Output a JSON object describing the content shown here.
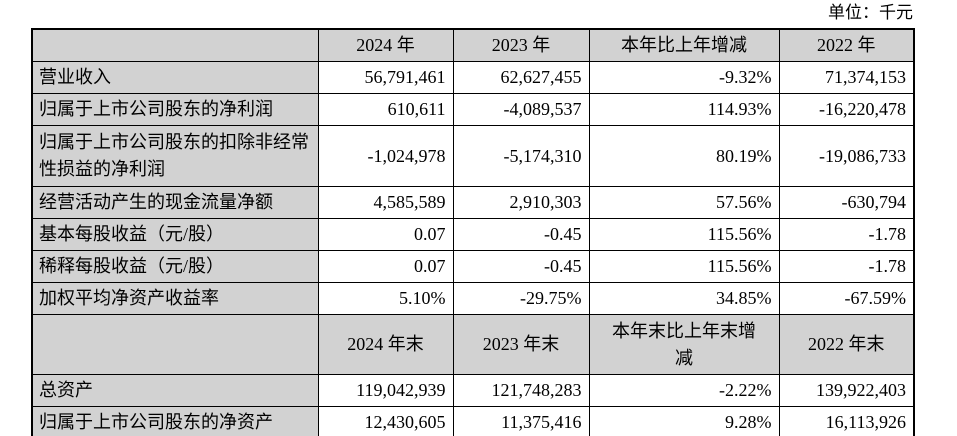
{
  "page": {
    "unit_label": "单位：千元"
  },
  "colors": {
    "header_bg": "#d2d2d2",
    "label_column_bg": "#d2d2d2",
    "border": "#000000",
    "text": "#000000",
    "data_cell_bg": "#ffffff"
  },
  "table": {
    "sections": [
      {
        "headers": [
          "",
          "2024 年",
          "2023 年",
          "本年比上年增减",
          "2022 年"
        ],
        "rows": [
          {
            "label": "营业收入",
            "values": [
              "56,791,461",
              "62,627,455",
              "-9.32%",
              "71,374,153"
            ]
          },
          {
            "label": "归属于上市公司股东的净利润",
            "values": [
              "610,611",
              "-4,089,537",
              "114.93%",
              "-16,220,478"
            ]
          },
          {
            "label": "归属于上市公司股东的扣除非经常性损益的净利润",
            "values": [
              "-1,024,978",
              "-5,174,310",
              "80.19%",
              "-19,086,733"
            ]
          },
          {
            "label": "经营活动产生的现金流量净额",
            "values": [
              "4,585,589",
              "2,910,303",
              "57.56%",
              "-630,794"
            ]
          },
          {
            "label": "基本每股收益（元/股）",
            "values": [
              "0.07",
              "-0.45",
              "115.56%",
              "-1.78"
            ]
          },
          {
            "label": "稀释每股收益（元/股）",
            "values": [
              "0.07",
              "-0.45",
              "115.56%",
              "-1.78"
            ]
          },
          {
            "label": "加权平均净资产收益率",
            "values": [
              "5.10%",
              "-29.75%",
              "34.85%",
              "-67.59%"
            ]
          }
        ]
      },
      {
        "headers": [
          "",
          "2024 年末",
          "2023 年末",
          "本年末比上年末增减",
          "2022 年末"
        ],
        "rows": [
          {
            "label": "总资产",
            "values": [
              "119,042,939",
              "121,748,283",
              "-2.22%",
              "139,922,403"
            ]
          },
          {
            "label": "归属于上市公司股东的净资产",
            "values": [
              "12,430,605",
              "11,375,416",
              "9.28%",
              "16,113,926"
            ]
          }
        ]
      }
    ]
  }
}
